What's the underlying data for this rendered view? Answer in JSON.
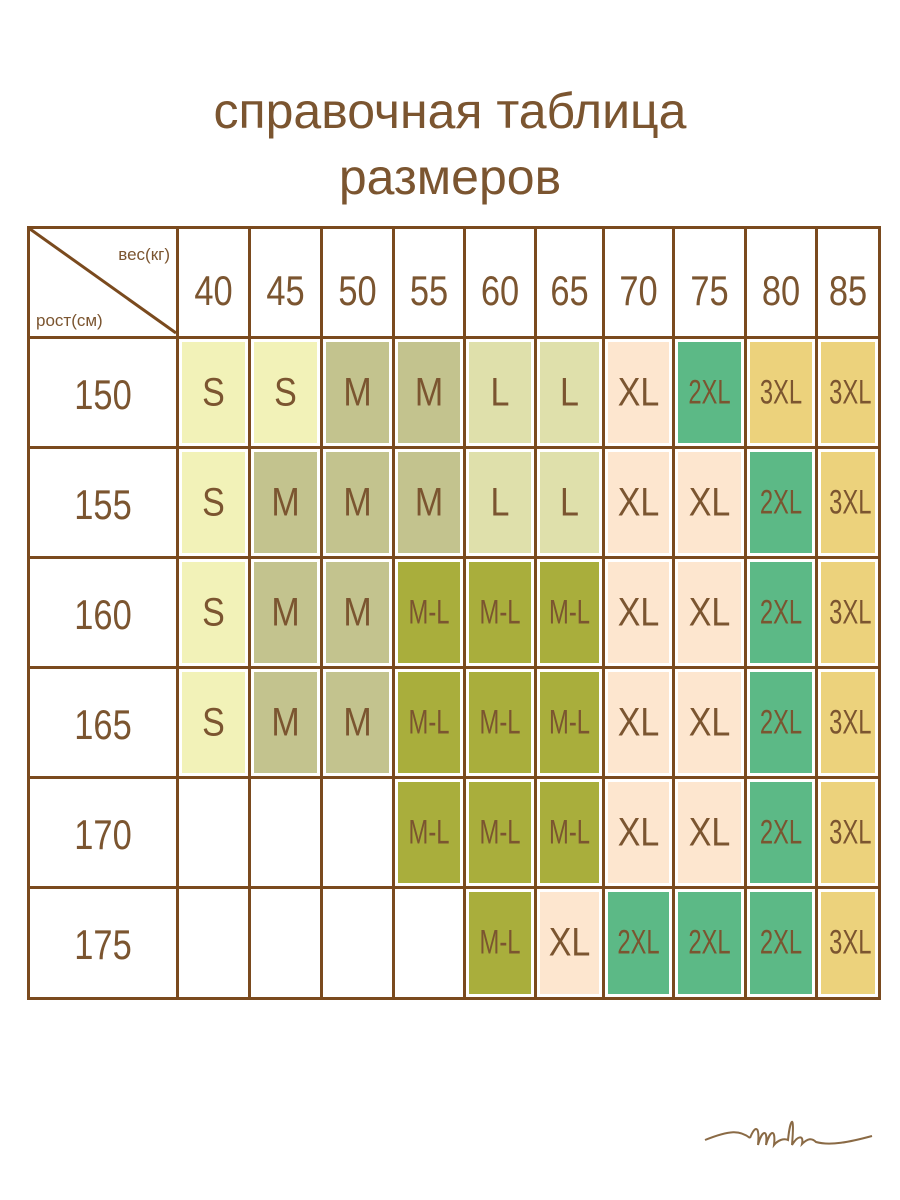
{
  "header": {
    "title": [
      "справочная таблица",
      "размеров"
    ]
  },
  "table": {
    "corner": {
      "top": "вес(кг)",
      "bottom": "рост(см)"
    },
    "columns": [
      "40",
      "45",
      "50",
      "55",
      "60",
      "65",
      "70",
      "75",
      "80",
      "85"
    ],
    "rows": [
      {
        "height": "150",
        "cells": [
          {
            "label": "S",
            "color": "#f2f2b8"
          },
          {
            "label": "S",
            "color": "#f2f2b8"
          },
          {
            "label": "M",
            "color": "#c3c38e"
          },
          {
            "label": "M",
            "color": "#c3c38e"
          },
          {
            "label": "L",
            "color": "#dfe0ab"
          },
          {
            "label": "L",
            "color": "#dfe0ab"
          },
          {
            "label": "XL",
            "color": "#fde6cf"
          },
          {
            "label": "2XL",
            "color": "#5cb986"
          },
          {
            "label": "3XL",
            "color": "#ecd27c"
          },
          {
            "label": "3XL",
            "color": "#ecd27c"
          }
        ]
      },
      {
        "height": "155",
        "cells": [
          {
            "label": "S",
            "color": "#f2f2b8"
          },
          {
            "label": "M",
            "color": "#c3c38e"
          },
          {
            "label": "M",
            "color": "#c3c38e"
          },
          {
            "label": "M",
            "color": "#c3c38e"
          },
          {
            "label": "L",
            "color": "#dfe0ab"
          },
          {
            "label": "L",
            "color": "#dfe0ab"
          },
          {
            "label": "XL",
            "color": "#fde6cf"
          },
          {
            "label": "XL",
            "color": "#fde6cf"
          },
          {
            "label": "2XL",
            "color": "#5cb986"
          },
          {
            "label": "3XL",
            "color": "#ecd27c"
          }
        ]
      },
      {
        "height": "160",
        "cells": [
          {
            "label": "S",
            "color": "#f2f2b8"
          },
          {
            "label": "M",
            "color": "#c3c38e"
          },
          {
            "label": "M",
            "color": "#c3c38e"
          },
          {
            "label": "M-L",
            "color": "#a9ae3c"
          },
          {
            "label": "M-L",
            "color": "#a9ae3c"
          },
          {
            "label": "M-L",
            "color": "#a9ae3c"
          },
          {
            "label": "XL",
            "color": "#fde6cf"
          },
          {
            "label": "XL",
            "color": "#fde6cf"
          },
          {
            "label": "2XL",
            "color": "#5cb986"
          },
          {
            "label": "3XL",
            "color": "#ecd27c"
          }
        ]
      },
      {
        "height": "165",
        "cells": [
          {
            "label": "S",
            "color": "#f2f2b8"
          },
          {
            "label": "M",
            "color": "#c3c38e"
          },
          {
            "label": "M",
            "color": "#c3c38e"
          },
          {
            "label": "M-L",
            "color": "#a9ae3c"
          },
          {
            "label": "M-L",
            "color": "#a9ae3c"
          },
          {
            "label": "M-L",
            "color": "#a9ae3c"
          },
          {
            "label": "XL",
            "color": "#fde6cf"
          },
          {
            "label": "XL",
            "color": "#fde6cf"
          },
          {
            "label": "2XL",
            "color": "#5cb986"
          },
          {
            "label": "3XL",
            "color": "#ecd27c"
          }
        ]
      },
      {
        "height": "170",
        "cells": [
          null,
          null,
          null,
          {
            "label": "M-L",
            "color": "#a9ae3c"
          },
          {
            "label": "M-L",
            "color": "#a9ae3c"
          },
          {
            "label": "M-L",
            "color": "#a9ae3c"
          },
          {
            "label": "XL",
            "color": "#fde6cf"
          },
          {
            "label": "XL",
            "color": "#fde6cf"
          },
          {
            "label": "2XL",
            "color": "#5cb986"
          },
          {
            "label": "3XL",
            "color": "#ecd27c"
          }
        ]
      },
      {
        "height": "175",
        "cells": [
          null,
          null,
          null,
          null,
          {
            "label": "M-L",
            "color": "#a9ae3c"
          },
          {
            "label": "XL",
            "color": "#fde6cf"
          },
          {
            "label": "2XL",
            "color": "#5cb986"
          },
          {
            "label": "2XL",
            "color": "#5cb986"
          },
          {
            "label": "2XL",
            "color": "#5cb986"
          },
          {
            "label": "3XL",
            "color": "#ecd27c"
          }
        ]
      }
    ]
  }
}
